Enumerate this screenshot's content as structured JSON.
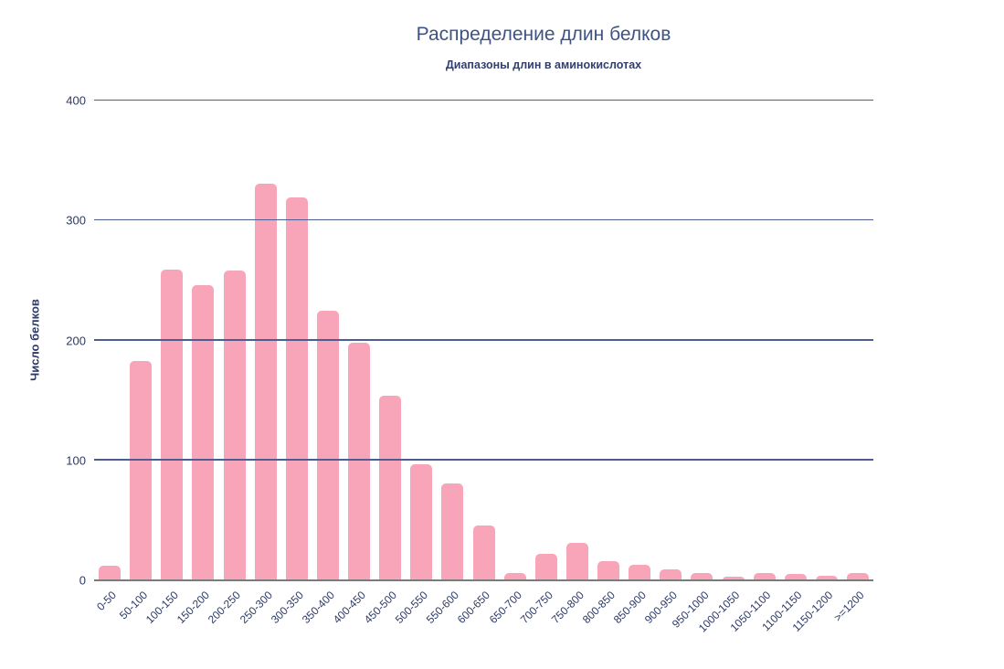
{
  "colors": {
    "bar": "#f8a5ba",
    "grid": "#4e5c90",
    "axis": "#7b7b7b",
    "title": "#3e5384",
    "subtitle": "#323f6e",
    "tick": "#2d3968"
  },
  "chart_data": {
    "type": "bar",
    "title": "Распределение длин белков",
    "subtitle": "Диапазоны длин в аминокислотах",
    "xlabel": "",
    "ylabel": "Число белков",
    "categories": [
      "0-50",
      "50-100",
      "100-150",
      "150-200",
      "200-250",
      "250-300",
      "300-350",
      "350-400",
      "400-450",
      "450-500",
      "500-550",
      "550-600",
      "600-650",
      "650-700",
      "700-750",
      "750-800",
      "800-850",
      "850-900",
      "900-950",
      "950-1000",
      "1000-1050",
      "1050-1100",
      "1100-1150",
      "1150-1200",
      ">=1200"
    ],
    "values": [
      12,
      183,
      259,
      246,
      258,
      331,
      319,
      225,
      198,
      154,
      97,
      81,
      46,
      6,
      22,
      31,
      16,
      13,
      9,
      6,
      3,
      6,
      5,
      4,
      6
    ],
    "yticks": [
      0,
      100,
      200,
      300,
      400
    ],
    "ylim": [
      0,
      400
    ],
    "grid": true,
    "legend": "none",
    "bar_color": "#f8a5ba"
  }
}
